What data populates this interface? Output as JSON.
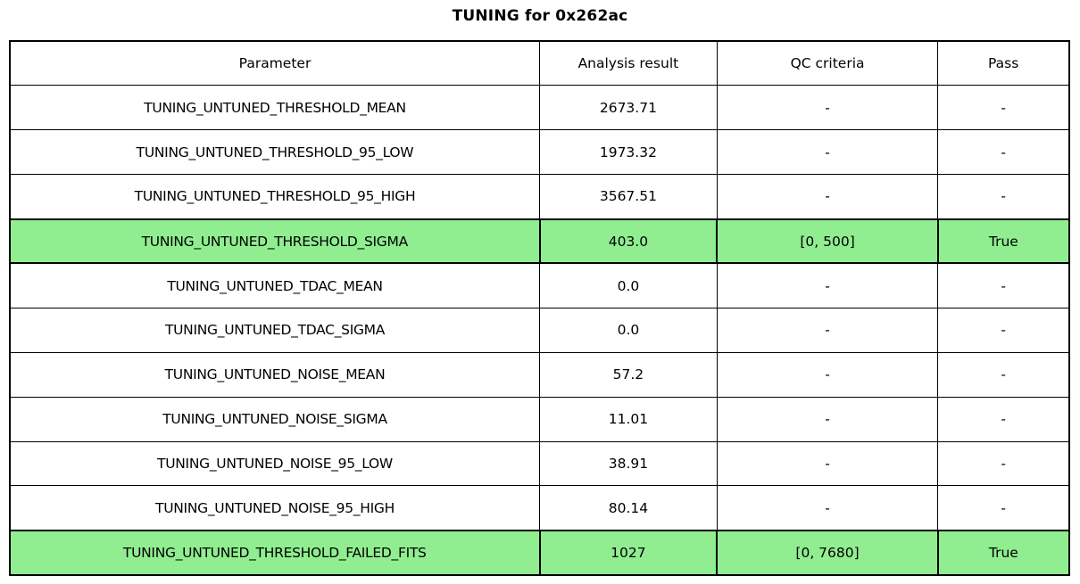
{
  "title": "TUNING for 0x262ac",
  "colors": {
    "highlight_green": "#90ee90",
    "border": "#000000",
    "background": "#ffffff"
  },
  "table": {
    "columns": [
      "Parameter",
      "Analysis result",
      "QC criteria",
      "Pass"
    ],
    "rows": [
      {
        "parameter": "TUNING_UNTUNED_THRESHOLD_MEAN",
        "result": "2673.71",
        "qc": "-",
        "pass": "-",
        "highlight": false
      },
      {
        "parameter": "TUNING_UNTUNED_THRESHOLD_95_LOW",
        "result": "1973.32",
        "qc": "-",
        "pass": "-",
        "highlight": false
      },
      {
        "parameter": "TUNING_UNTUNED_THRESHOLD_95_HIGH",
        "result": "3567.51",
        "qc": "-",
        "pass": "-",
        "highlight": false
      },
      {
        "parameter": "TUNING_UNTUNED_THRESHOLD_SIGMA",
        "result": "403.0",
        "qc": "[0, 500]",
        "pass": "True",
        "highlight": true
      },
      {
        "parameter": "TUNING_UNTUNED_TDAC_MEAN",
        "result": "0.0",
        "qc": "-",
        "pass": "-",
        "highlight": false
      },
      {
        "parameter": "TUNING_UNTUNED_TDAC_SIGMA",
        "result": "0.0",
        "qc": "-",
        "pass": "-",
        "highlight": false
      },
      {
        "parameter": "TUNING_UNTUNED_NOISE_MEAN",
        "result": "57.2",
        "qc": "-",
        "pass": "-",
        "highlight": false
      },
      {
        "parameter": "TUNING_UNTUNED_NOISE_SIGMA",
        "result": "11.01",
        "qc": "-",
        "pass": "-",
        "highlight": false
      },
      {
        "parameter": "TUNING_UNTUNED_NOISE_95_LOW",
        "result": "38.91",
        "qc": "-",
        "pass": "-",
        "highlight": false
      },
      {
        "parameter": "TUNING_UNTUNED_NOISE_95_HIGH",
        "result": "80.14",
        "qc": "-",
        "pass": "-",
        "highlight": false
      },
      {
        "parameter": "TUNING_UNTUNED_THRESHOLD_FAILED_FITS",
        "result": "1027",
        "qc": "[0, 7680]",
        "pass": "True",
        "highlight": true
      }
    ]
  }
}
